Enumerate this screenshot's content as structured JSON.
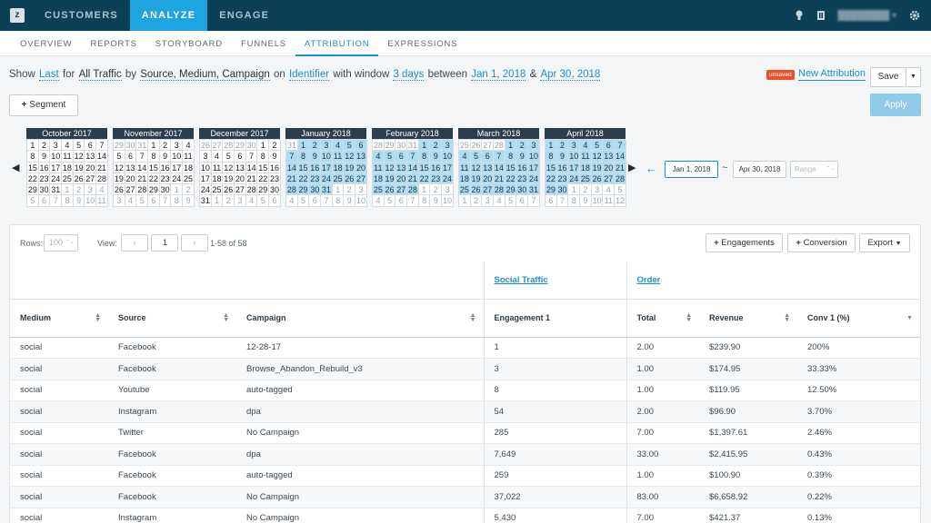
{
  "app": {
    "logo": "z",
    "user_name": "████████ ▾"
  },
  "topnav": [
    "CUSTOMERS",
    "ANALYZE",
    "ENGAGE"
  ],
  "subnav": [
    "OVERVIEW",
    "REPORTS",
    "STORYBOARD",
    "FUNNELS",
    "ATTRIBUTION",
    "EXPRESSIONS"
  ],
  "query": {
    "show": "Show",
    "last": "Last",
    "for": "for",
    "traffic": "All Traffic",
    "by": "by",
    "dims": "Source, Medium, Campaign",
    "on": "on",
    "identifier": "Identifier",
    "window_lbl": "with window",
    "window": "3 days",
    "between": "between",
    "start": "Jan 1, 2018",
    "amp": "&",
    "end": "Apr 30, 2018"
  },
  "badge": "unsaved",
  "new_attribution": "New Attribution",
  "save": "Save",
  "segment": "Segment",
  "apply": "Apply",
  "calendars": [
    {
      "title": "October 2017",
      "days": [
        "1",
        "2",
        "3",
        "4",
        "5",
        "6",
        "7",
        "8",
        "9",
        "10",
        "11",
        "12",
        "13",
        "14",
        "15",
        "16",
        "17",
        "18",
        "19",
        "20",
        "21",
        "22",
        "23",
        "24",
        "25",
        "26",
        "27",
        "28",
        "29",
        "30",
        "31",
        "1",
        "2",
        "3",
        "4",
        "5",
        "6",
        "7",
        "8",
        "9",
        "10",
        "11"
      ],
      "lead": 0,
      "hl_from": -1,
      "hl_to": -1
    },
    {
      "title": "November 2017",
      "days": [
        "29",
        "30",
        "31",
        "1",
        "2",
        "3",
        "4",
        "5",
        "6",
        "7",
        "8",
        "9",
        "10",
        "11",
        "12",
        "13",
        "14",
        "15",
        "16",
        "17",
        "18",
        "19",
        "20",
        "21",
        "22",
        "23",
        "24",
        "25",
        "26",
        "27",
        "28",
        "29",
        "30",
        "1",
        "2",
        "3",
        "4",
        "5",
        "6",
        "7",
        "8",
        "9"
      ],
      "lead": 3,
      "hl_from": -1,
      "hl_to": -1
    },
    {
      "title": "December 2017",
      "days": [
        "26",
        "27",
        "28",
        "29",
        "30",
        "1",
        "2",
        "3",
        "4",
        "5",
        "6",
        "7",
        "8",
        "9",
        "10",
        "11",
        "12",
        "13",
        "14",
        "15",
        "16",
        "17",
        "18",
        "19",
        "20",
        "21",
        "22",
        "23",
        "24",
        "25",
        "26",
        "27",
        "28",
        "29",
        "30",
        "31",
        "1",
        "2",
        "3",
        "4",
        "5",
        "6"
      ],
      "lead": 5,
      "hl_from": -1,
      "hl_to": -1
    },
    {
      "title": "January 2018",
      "days": [
        "31",
        "1",
        "2",
        "3",
        "4",
        "5",
        "6",
        "7",
        "8",
        "9",
        "10",
        "11",
        "12",
        "13",
        "14",
        "15",
        "16",
        "17",
        "18",
        "19",
        "20",
        "21",
        "22",
        "23",
        "24",
        "25",
        "26",
        "27",
        "28",
        "29",
        "30",
        "31",
        "1",
        "2",
        "3",
        "4",
        "5",
        "6",
        "7",
        "8",
        "9",
        "10"
      ],
      "lead": 1,
      "hl_from": 1,
      "hl_to": 31
    },
    {
      "title": "February 2018",
      "days": [
        "28",
        "29",
        "30",
        "31",
        "1",
        "2",
        "3",
        "4",
        "5",
        "6",
        "7",
        "8",
        "9",
        "10",
        "11",
        "12",
        "13",
        "14",
        "15",
        "16",
        "17",
        "18",
        "19",
        "20",
        "21",
        "22",
        "23",
        "24",
        "25",
        "26",
        "27",
        "28",
        "1",
        "2",
        "3",
        "4",
        "5",
        "6",
        "7",
        "8",
        "9",
        "10"
      ],
      "lead": 4,
      "hl_from": 4,
      "hl_to": 31
    },
    {
      "title": "March 2018",
      "days": [
        "25",
        "26",
        "27",
        "28",
        "1",
        "2",
        "3",
        "4",
        "5",
        "6",
        "7",
        "8",
        "9",
        "10",
        "11",
        "12",
        "13",
        "14",
        "15",
        "16",
        "17",
        "18",
        "19",
        "20",
        "21",
        "22",
        "23",
        "24",
        "25",
        "26",
        "27",
        "28",
        "29",
        "30",
        "31",
        "1",
        "2",
        "3",
        "4",
        "5",
        "6",
        "7"
      ],
      "lead": 4,
      "hl_from": 4,
      "hl_to": 34
    },
    {
      "title": "April 2018",
      "days": [
        "1",
        "2",
        "3",
        "4",
        "5",
        "6",
        "7",
        "8",
        "9",
        "10",
        "11",
        "12",
        "13",
        "14",
        "15",
        "16",
        "17",
        "18",
        "19",
        "20",
        "21",
        "22",
        "23",
        "24",
        "25",
        "26",
        "27",
        "28",
        "29",
        "30",
        "1",
        "2",
        "3",
        "4",
        "5",
        "6",
        "7",
        "8",
        "9",
        "10",
        "11",
        "12"
      ],
      "lead": 0,
      "hl_from": 0,
      "hl_to": 29
    }
  ],
  "date_start": "Jan 1, 2018",
  "date_end": "Apr 30, 2018",
  "range_placeholder": "Range",
  "table_ctl": {
    "rows_label": "Rows:",
    "rows_value": "100",
    "view_label": "View:",
    "page": "1",
    "count": "1-58 of 58",
    "engagements": "Engagements",
    "conversion": "Conversion",
    "export": "Export"
  },
  "groups": {
    "social": "Social Traffic",
    "order": "Order"
  },
  "columns": [
    "Medium",
    "Source",
    "Campaign",
    "Engagement 1",
    "Total",
    "Revenue",
    "Conv 1 (%)"
  ],
  "rows": [
    [
      "social",
      "Facebook",
      "12-28-17",
      "1",
      "2.00",
      "$239.90",
      "200%"
    ],
    [
      "social",
      "Facebook",
      "Browse_Abandon_Rebuild_v3",
      "3",
      "1.00",
      "$174.95",
      "33.33%"
    ],
    [
      "social",
      "Youtube",
      "auto-tagged",
      "8",
      "1.00",
      "$119.95",
      "12.50%"
    ],
    [
      "social",
      "Instagram",
      "dpa",
      "54",
      "2.00",
      "$96.90",
      "3.70%"
    ],
    [
      "social",
      "Twitter",
      "No Campaign",
      "285",
      "7.00",
      "$1,397.61",
      "2.46%"
    ],
    [
      "social",
      "Facebook",
      "dpa",
      "7,649",
      "33.00",
      "$2,415.95",
      "0.43%"
    ],
    [
      "social",
      "Facebook",
      "auto-tagged",
      "259",
      "1.00",
      "$100.90",
      "0.39%"
    ],
    [
      "social",
      "Facebook",
      "No Campaign",
      "37,022",
      "83.00",
      "$6,658.92",
      "0.22%"
    ],
    [
      "social",
      "Instagram",
      "No Campaign",
      "5,430",
      "7.00",
      "$421.37",
      "0.13%"
    ]
  ]
}
